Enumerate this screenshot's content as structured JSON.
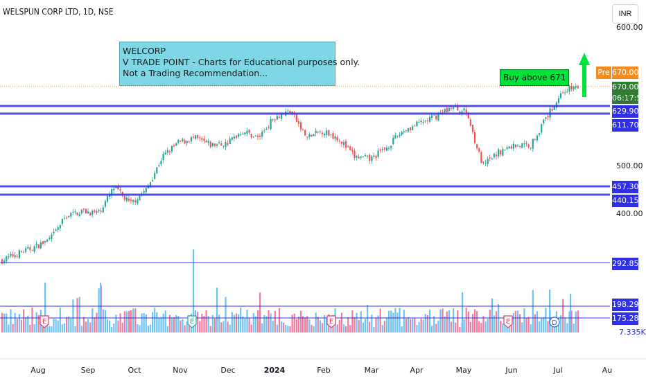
{
  "header": {
    "symbol": "WELSPUN CORP LTD, 1D, NSE",
    "currency": "INR"
  },
  "note": {
    "lines": [
      "WELCORP",
      "V TRADE POINT - Charts for Educational purposes only.",
      "Not a Trading Recommendation..."
    ]
  },
  "buy_label": "Buy above 671",
  "price_axis": {
    "top_cut": "600.00",
    "ticks": [
      "500.00",
      "400.00"
    ],
    "pre_tag": "Pre",
    "pre_price": "670.00",
    "last_price": "670.00",
    "countdown": "06:17:52",
    "bottom_value": "7.335K"
  },
  "levels": [
    {
      "value": "629.90",
      "color": "#2f2fe8"
    },
    {
      "value": "611.70",
      "color": "#2f2fe8"
    },
    {
      "value": "457.30",
      "color": "#2f2fe8"
    },
    {
      "value": "440.15",
      "color": "#2f2fe8"
    },
    {
      "value": "292.85",
      "color": "#2f2fe8"
    },
    {
      "value": "198.29",
      "color": "#2f2fe8"
    },
    {
      "value": "175.28",
      "color": "#2f2fe8"
    }
  ],
  "x_axis": [
    "Aug",
    "Sep",
    "Oct",
    "Nov",
    "Dec",
    "2024",
    "Feb",
    "Mar",
    "Apr",
    "May",
    "Jun",
    "Jul",
    "Au"
  ],
  "colors": {
    "up": "#26a69a",
    "down": "#ef5350",
    "level": "#2f2fe8",
    "pre": "#f68b1f",
    "last": "#2e7d32",
    "arrow": "#00e33a"
  },
  "chart_data": {
    "type": "candlestick",
    "title": "WELSPUN CORP LTD, 1D, NSE",
    "ylim": [
      290,
      690
    ],
    "support_resistance": [
      629.9,
      611.7,
      457.3,
      440.15,
      292.85
    ],
    "volume_levels": [
      198.29,
      175.28
    ],
    "earnings_markers": [
      "Aug",
      "Nov",
      "Feb",
      "May"
    ],
    "dividend_markers": [
      "Jul"
    ],
    "price_path": [
      [
        "Jul",
        300
      ],
      [
        "Aug",
        315
      ],
      [
        "Aug",
        328
      ],
      [
        "Sep",
        345
      ],
      [
        "Sep",
        395
      ],
      [
        "Sep",
        405
      ],
      [
        "Oct",
        400
      ],
      [
        "Oct",
        455
      ],
      [
        "Oct",
        420
      ],
      [
        "Nov",
        450
      ],
      [
        "Nov",
        520
      ],
      [
        "Nov",
        550
      ],
      [
        "Dec",
        560
      ],
      [
        "Dec",
        545
      ],
      [
        "Dec",
        548
      ],
      [
        "2024",
        575
      ],
      [
        "2024",
        560
      ],
      [
        "2024",
        605
      ],
      [
        "Feb",
        618
      ],
      [
        "Feb",
        560
      ],
      [
        "Feb",
        575
      ],
      [
        "Mar",
        560
      ],
      [
        "Mar",
        520
      ],
      [
        "Mar",
        515
      ],
      [
        "Apr",
        540
      ],
      [
        "Apr",
        575
      ],
      [
        "Apr",
        590
      ],
      [
        "May",
        605
      ],
      [
        "May",
        625
      ],
      [
        "May",
        615
      ],
      [
        "Jun",
        500
      ],
      [
        "Jun",
        530
      ],
      [
        "Jun",
        545
      ],
      [
        "Jul",
        545
      ],
      [
        "Jul",
        605
      ],
      [
        "Jul",
        660
      ],
      [
        "Jul",
        670
      ]
    ],
    "last": 670.0
  }
}
